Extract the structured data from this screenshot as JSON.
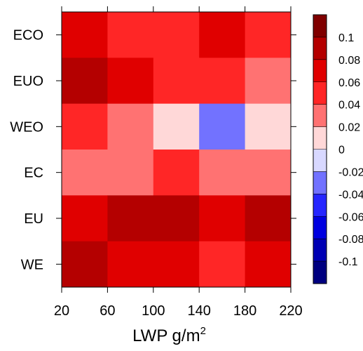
{
  "chart_data": {
    "type": "heatmap",
    "title": "",
    "xlabel": "LWP  g/m",
    "xlabel_superscript": "2",
    "ylabel": "",
    "x_bin_edges": [
      20,
      60,
      100,
      140,
      180,
      220
    ],
    "x_tick_labels": [
      "20",
      "60",
      "100",
      "140",
      "180",
      "220"
    ],
    "rows": [
      "ECO",
      "EUO",
      "WEO",
      "EC",
      "EU",
      "WE"
    ],
    "values": [
      [
        0.06,
        0.04,
        0.04,
        0.06,
        0.04
      ],
      [
        0.08,
        0.06,
        0.04,
        0.04,
        0.02
      ],
      [
        0.04,
        0.02,
        0.0,
        -0.04,
        0.0
      ],
      [
        0.02,
        0.02,
        0.04,
        0.02,
        0.02
      ],
      [
        0.06,
        0.08,
        0.08,
        0.06,
        0.08
      ],
      [
        0.08,
        0.06,
        0.06,
        0.04,
        0.06
      ]
    ],
    "colorbar": {
      "levels": [
        0.1,
        0.08,
        0.06,
        0.04,
        0.02,
        0,
        -0.02,
        -0.04,
        -0.06,
        -0.08,
        -0.1
      ],
      "labels": [
        "0.1",
        "0.08",
        "0.06",
        "0.04",
        "0.02",
        "0",
        "-0.02",
        "-0.04",
        "-0.06",
        "-0.08",
        "-0.1"
      ],
      "colors": [
        "#800000",
        "#b40000",
        "#e00000",
        "#ff2626",
        "#ff7272",
        "#ffd8d8",
        "#d8d8ff",
        "#7272ff",
        "#2626ff",
        "#0000e0",
        "#0000b4",
        "#000080"
      ]
    },
    "grid": false
  }
}
